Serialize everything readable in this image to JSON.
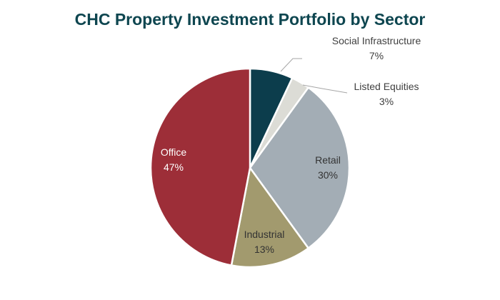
{
  "chart_data": {
    "type": "pie",
    "title": "CHC Property Investment Portfolio by Sector",
    "title_color": "#0e4650",
    "slices": [
      {
        "label": "Social Infrastructure",
        "value": 7,
        "display": "7%",
        "color": "#0c3d4c",
        "label_color": "#404040"
      },
      {
        "label": "Listed Equities",
        "value": 3,
        "display": "3%",
        "color": "#dcdcd6",
        "label_color": "#404040"
      },
      {
        "label": "Retail",
        "value": 30,
        "display": "30%",
        "color": "#a3adb5",
        "label_color": "#333333"
      },
      {
        "label": "Industrial",
        "value": 13,
        "display": "13%",
        "color": "#a29a6e",
        "label_color": "#333333"
      },
      {
        "label": "Office",
        "value": 47,
        "display": "47%",
        "color": "#9d2e38",
        "label_color": "#ffffff"
      }
    ],
    "start_direction": "12 o'clock",
    "direction": "clockwise",
    "legend": "none"
  }
}
